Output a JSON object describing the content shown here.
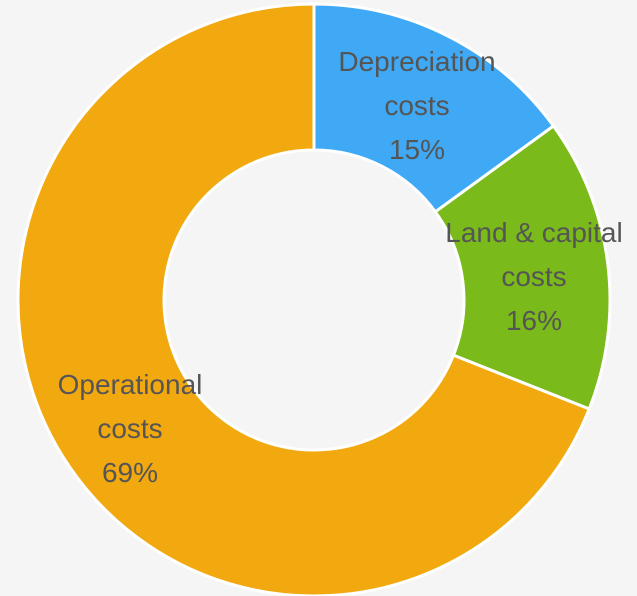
{
  "chart_data": {
    "type": "donut",
    "categories": [
      "Depreciation costs",
      "Land & capital costs",
      "Operational costs"
    ],
    "values": [
      15,
      16,
      69
    ],
    "value_labels": [
      "15%",
      "16%",
      "69%"
    ],
    "colors": [
      "#3fa9f5",
      "#7aba1a",
      "#f2a90f"
    ]
  }
}
